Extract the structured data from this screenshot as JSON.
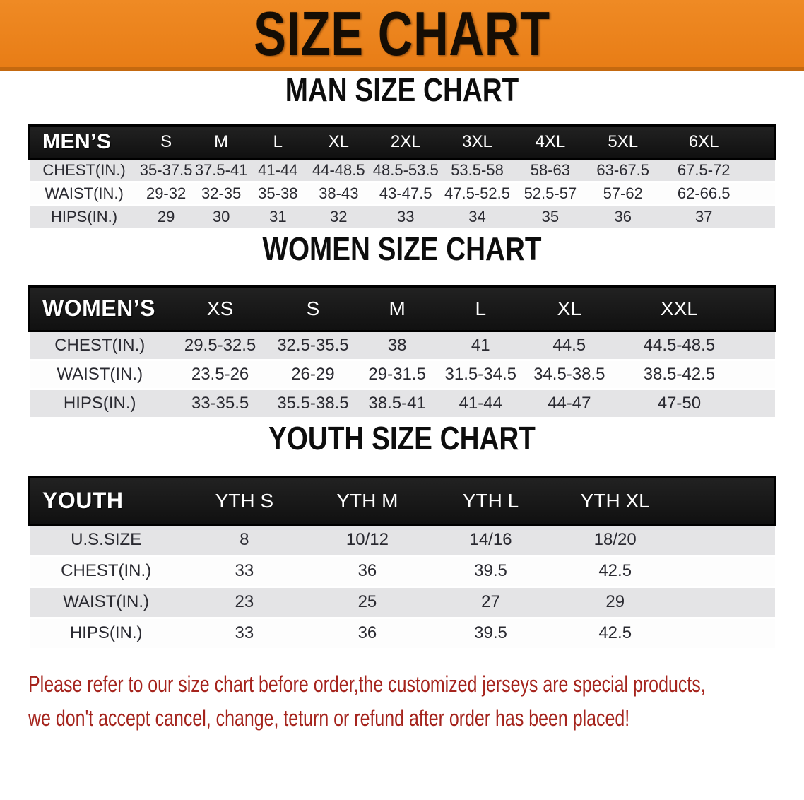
{
  "banner": {
    "title": "SIZE CHART",
    "background_color": "#E8821F",
    "border_color": "#C4690F",
    "text_color": "#150D04"
  },
  "sections": {
    "men": {
      "heading": "MAN SIZE CHART"
    },
    "women": {
      "heading": "WOMEN SIZE CHART"
    },
    "youth": {
      "heading": "YOUTH SIZE CHART"
    }
  },
  "tables": {
    "men": {
      "title": "MEN’S",
      "sizes": [
        "S",
        "M",
        "L",
        "XL",
        "2XL",
        "3XL",
        "4XL",
        "5XL",
        "6XL"
      ],
      "rows": [
        {
          "label": "CHEST(IN.)",
          "values": [
            "35-37.5",
            "37.5-41",
            "41-44",
            "44-48.5",
            "48.5-53.5",
            "53.5-58",
            "58-63",
            "63-67.5",
            "67.5-72"
          ]
        },
        {
          "label": "WAIST(IN.)",
          "values": [
            "29-32",
            "32-35",
            "35-38",
            "38-43",
            "43-47.5",
            "47.5-52.5",
            "52.5-57",
            "57-62",
            "62-66.5"
          ]
        },
        {
          "label": "HIPS(IN.)",
          "values": [
            "29",
            "30",
            "31",
            "32",
            "33",
            "34",
            "35",
            "36",
            "37"
          ]
        }
      ]
    },
    "women": {
      "title": "WOMEN’S",
      "sizes": [
        "XS",
        "S",
        "M",
        "L",
        "XL",
        "XXL"
      ],
      "rows": [
        {
          "label": "CHEST(IN.)",
          "values": [
            "29.5-32.5",
            "32.5-35.5",
            "38",
            "41",
            "44.5",
            "44.5-48.5"
          ]
        },
        {
          "label": "WAIST(IN.)",
          "values": [
            "23.5-26",
            "26-29",
            "29-31.5",
            "31.5-34.5",
            "34.5-38.5",
            "38.5-42.5"
          ]
        },
        {
          "label": "HIPS(IN.)",
          "values": [
            "33-35.5",
            "35.5-38.5",
            "38.5-41",
            "41-44",
            "44-47",
            "47-50"
          ]
        }
      ]
    },
    "youth": {
      "title": "YOUTH",
      "sizes": [
        "YTH S",
        "YTH M",
        "YTH L",
        "YTH XL"
      ],
      "rows": [
        {
          "label": "U.S.SIZE",
          "values": [
            "8",
            "10/12",
            "14/16",
            "18/20"
          ]
        },
        {
          "label": "CHEST(IN.)",
          "values": [
            "33",
            "36",
            "39.5",
            "42.5"
          ]
        },
        {
          "label": "WAIST(IN.)",
          "values": [
            "23",
            "25",
            "27",
            "29"
          ]
        },
        {
          "label": "HIPS(IN.)",
          "values": [
            "33",
            "36",
            "39.5",
            "42.5"
          ]
        }
      ]
    },
    "row_colors": {
      "gray": "#E4E4E6",
      "white": "#FDFDFD",
      "header": "#161616"
    }
  },
  "disclaimer": {
    "line1": "Please refer to our size chart before order,the customized jerseys are special products,",
    "line2": "we don't accept cancel, change, teturn or refund after order has been placed!",
    "color": "#A5241D"
  }
}
